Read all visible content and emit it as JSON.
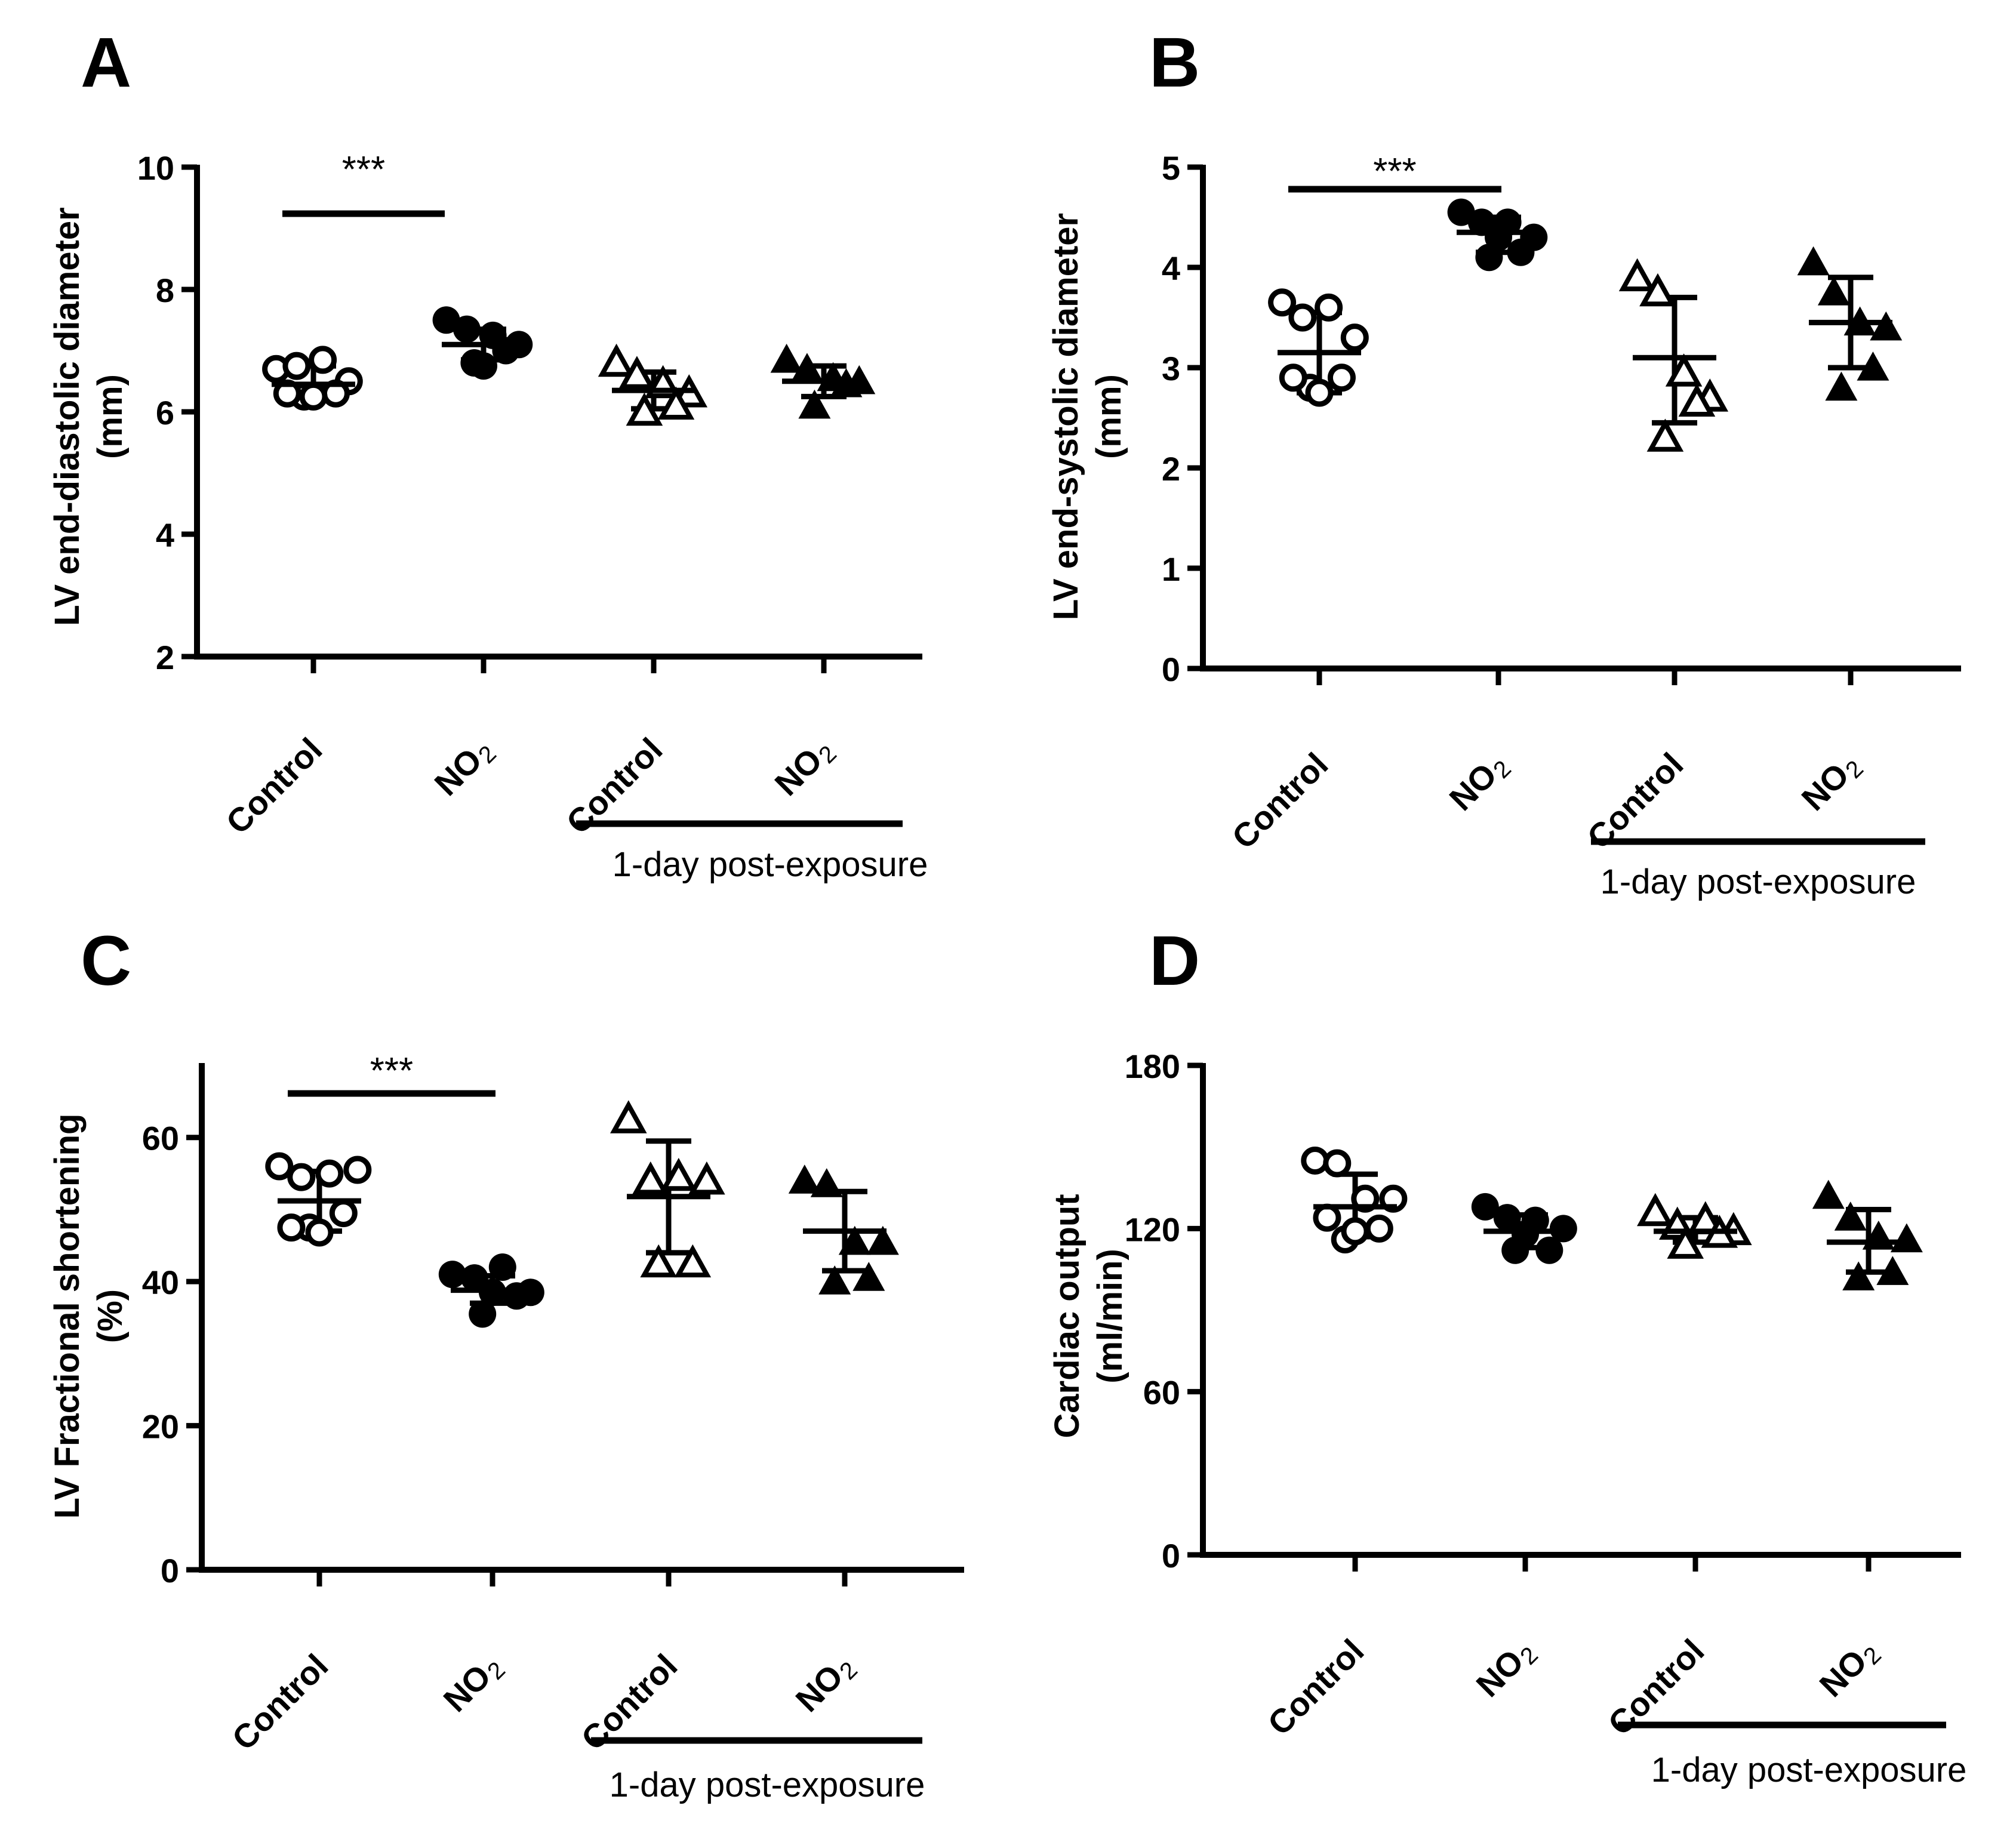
{
  "figure": {
    "panels": [
      "A",
      "B",
      "C",
      "D"
    ],
    "colors": {
      "ink": "#000000",
      "background": "#ffffff"
    },
    "marker_legend": {
      "open-circle": "Control",
      "filled-circle": "NO2",
      "open-triangle": "Control, 1-day post-exposure",
      "filled-triangle": "NO2, 1-day post-exposure"
    }
  },
  "chart_data": [
    {
      "panel": "A",
      "type": "scatter",
      "title": "",
      "ylabel": [
        "LV end-diastolic diameter",
        "(mm)"
      ],
      "xlabel": "",
      "ylim": [
        2,
        10
      ],
      "yticks": [
        2,
        4,
        6,
        8,
        10
      ],
      "categories": [
        "Control",
        "NO",
        "Control",
        "NO"
      ],
      "category_subscripts": [
        "",
        "2",
        "",
        "2"
      ],
      "group_label": "1-day post-exposure",
      "significance": "***",
      "groups": [
        {
          "name": "Control",
          "marker": "open-circle",
          "mean": 6.45,
          "sd_low": 6.2,
          "sd_high": 6.75,
          "points": [
            6.7,
            6.75,
            6.85,
            6.5,
            6.3,
            6.25,
            6.25,
            6.3
          ]
        },
        {
          "name": "NO2",
          "marker": "filled-circle",
          "mean": 7.1,
          "sd_low": 6.85,
          "sd_high": 7.35,
          "points": [
            7.5,
            7.35,
            7.25,
            7.1,
            7.0,
            6.8,
            6.75
          ]
        },
        {
          "name": "Control (1-day post-exposure)",
          "marker": "open-triangle",
          "mean": 6.35,
          "sd_low": 6.05,
          "sd_high": 6.65,
          "points": [
            6.8,
            6.6,
            6.45,
            6.3,
            6.1,
            6.0
          ]
        },
        {
          "name": "NO2 (1-day post-exposure)",
          "marker": "filled-triangle",
          "mean": 6.5,
          "sd_low": 6.25,
          "sd_high": 6.75,
          "points": [
            6.85,
            6.7,
            6.55,
            6.5,
            6.45,
            6.1
          ]
        }
      ]
    },
    {
      "panel": "B",
      "type": "scatter",
      "title": "",
      "ylabel": [
        "LV end-systolic diameter",
        "(mm)"
      ],
      "xlabel": "",
      "ylim": [
        0,
        5
      ],
      "yticks": [
        0,
        1,
        2,
        3,
        4,
        5
      ],
      "categories": [
        "Control",
        "NO",
        "Control",
        "NO"
      ],
      "category_subscripts": [
        "",
        "2",
        "",
        "2"
      ],
      "group_label": "1-day post-exposure",
      "significance": "***",
      "groups": [
        {
          "name": "Control",
          "marker": "open-circle",
          "mean": 3.15,
          "sd_low": 2.75,
          "sd_high": 3.55,
          "points": [
            3.65,
            3.5,
            3.6,
            3.3,
            2.9,
            2.8,
            2.75,
            2.9
          ]
        },
        {
          "name": "NO2",
          "marker": "filled-circle",
          "mean": 4.35,
          "sd_low": 4.15,
          "sd_high": 4.5,
          "points": [
            4.55,
            4.45,
            4.45,
            4.3,
            4.15,
            4.1,
            4.3
          ]
        },
        {
          "name": "Control (1-day post-exposure)",
          "marker": "open-triangle",
          "mean": 3.1,
          "sd_low": 2.45,
          "sd_high": 3.7,
          "points": [
            3.9,
            3.75,
            2.95,
            2.7,
            2.65,
            2.3
          ]
        },
        {
          "name": "NO2 (1-day post-exposure)",
          "marker": "filled-triangle",
          "mean": 3.45,
          "sd_low": 3.0,
          "sd_high": 3.9,
          "points": [
            4.05,
            3.75,
            3.45,
            3.4,
            3.0,
            2.8
          ]
        }
      ]
    },
    {
      "panel": "C",
      "type": "scatter",
      "title": "",
      "ylabel": [
        "LV Fractional shortening",
        "(%)"
      ],
      "xlabel": "",
      "ylim": [
        0,
        70
      ],
      "yticks": [
        0,
        20,
        40,
        60
      ],
      "categories": [
        "Control",
        "NO",
        "Control",
        "NO"
      ],
      "category_subscripts": [
        "",
        "2",
        "",
        "2"
      ],
      "group_label": "1-day post-exposure",
      "significance": "***",
      "groups": [
        {
          "name": "Control",
          "marker": "open-circle",
          "mean": 51.2,
          "sd_low": 47.0,
          "sd_high": 55.3,
          "points": [
            56.0,
            54.5,
            55.0,
            55.5,
            49.5,
            47.5,
            46.8,
            47.5
          ]
        },
        {
          "name": "NO2",
          "marker": "filled-circle",
          "mean": 38.8,
          "sd_low": 37.0,
          "sd_high": 40.8,
          "points": [
            41.0,
            40.5,
            42.0,
            38.5,
            38.0,
            35.5,
            38.5
          ]
        },
        {
          "name": "Control (1-day post-exposure)",
          "marker": "open-triangle",
          "mean": 51.8,
          "sd_low": 44.0,
          "sd_high": 59.5,
          "points": [
            62.5,
            54.0,
            54.5,
            54.0,
            42.5,
            42.5
          ]
        },
        {
          "name": "NO2 (1-day post-exposure)",
          "marker": "filled-triangle",
          "mean": 47.0,
          "sd_low": 41.5,
          "sd_high": 52.5,
          "points": [
            54.0,
            53.5,
            45.5,
            45.5,
            40.5,
            40.0
          ]
        }
      ]
    },
    {
      "panel": "D",
      "type": "scatter",
      "title": "",
      "ylabel": [
        "Cardiac output",
        "(ml/min)"
      ],
      "xlabel": "",
      "ylim": [
        0,
        180
      ],
      "yticks": [
        0,
        60,
        120,
        180
      ],
      "categories": [
        "Control",
        "NO",
        "Control",
        "NO"
      ],
      "category_subscripts": [
        "",
        "2",
        "",
        "2"
      ],
      "group_label": "1-day post-exposure",
      "significance": "",
      "groups": [
        {
          "name": "Control",
          "marker": "open-circle",
          "mean": 128,
          "sd_low": 117,
          "sd_high": 140,
          "points": [
            145,
            144,
            131,
            131,
            120,
            116,
            119,
            124
          ]
        },
        {
          "name": "NO2",
          "marker": "filled-circle",
          "mean": 119,
          "sd_low": 113,
          "sd_high": 125,
          "points": [
            128,
            124,
            123,
            120,
            112,
            112,
            118
          ]
        },
        {
          "name": "Control (1-day post-exposure)",
          "marker": "open-triangle",
          "mean": 119,
          "sd_low": 115,
          "sd_high": 124,
          "points": [
            126,
            121,
            123,
            119,
            118,
            114
          ]
        },
        {
          "name": "NO2 (1-day post-exposure)",
          "marker": "filled-triangle",
          "mean": 115,
          "sd_low": 104,
          "sd_high": 127,
          "points": [
            132,
            124,
            117,
            116,
            104,
            102
          ]
        }
      ]
    }
  ]
}
